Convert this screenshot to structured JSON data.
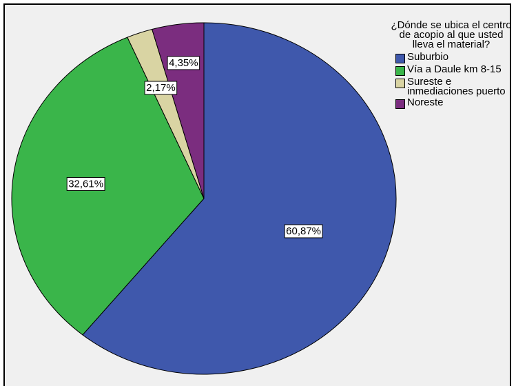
{
  "chart_data": {
    "type": "pie",
    "legend": {
      "title": "¿Dónde se ubica el centro de acopio al que usted lleva el material?",
      "placement": "top-right"
    },
    "slices": [
      {
        "label": "Suburbio",
        "value": 60.87,
        "display": "60,87%",
        "color": "#3f58ac"
      },
      {
        "label": "Vía a Daule km 8-15",
        "value": 32.61,
        "display": "32,61%",
        "color": "#3ab54a"
      },
      {
        "label": "Sureste e inmediaciones puerto",
        "value": 2.17,
        "display": "2,17%",
        "color": "#d9d4a3"
      },
      {
        "label": "Noreste",
        "value": 4.35,
        "display": "4,35%",
        "color": "#7b2d7f"
      }
    ]
  }
}
